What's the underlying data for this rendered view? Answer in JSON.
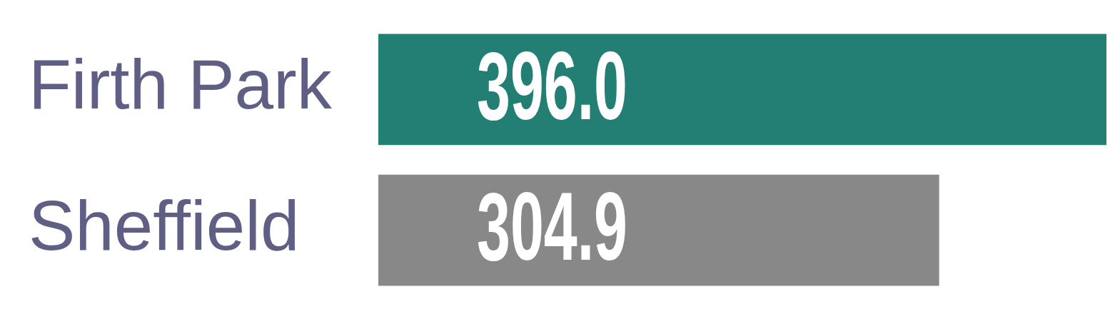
{
  "chart_data": {
    "type": "bar",
    "orientation": "horizontal",
    "categories": [
      "Firth Park",
      "Sheffield"
    ],
    "values": [
      396.0,
      304.9
    ],
    "colors": [
      "#237e74",
      "#888888"
    ],
    "value_labels": [
      "396.0",
      "304.9"
    ],
    "legend": false,
    "tick_labels": "y"
  }
}
